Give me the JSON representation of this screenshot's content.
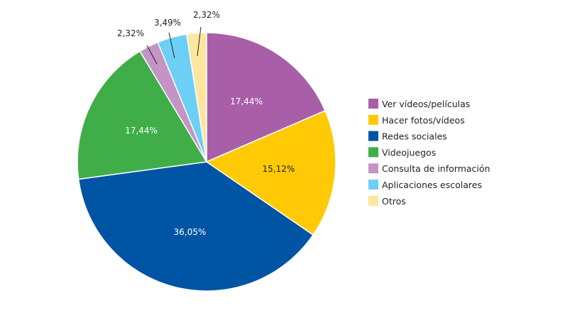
{
  "chart_data": {
    "type": "pie",
    "title": "",
    "slices": [
      {
        "label": "Ver vídeos/películas",
        "value": 17.44,
        "display": "17,44%",
        "color": "#A85FA8"
      },
      {
        "label": "Hacer fotos/vídeos",
        "value": 15.12,
        "display": "15,12%",
        "color": "#FFCA05"
      },
      {
        "label": "Redes sociales",
        "value": 36.05,
        "display": "36,05%",
        "color": "#0054A4"
      },
      {
        "label": "Videojuegos",
        "value": 17.44,
        "display": "17,44%",
        "color": "#3FAE49"
      },
      {
        "label": "Consulta de información",
        "value": 2.32,
        "display": "2,32%",
        "color": "#C494C4"
      },
      {
        "label": "Aplicaciones escolares",
        "value": 3.49,
        "display": "3,49%",
        "color": "#6CCFF6"
      },
      {
        "label": "Otros",
        "value": 2.32,
        "display": "2,32%",
        "color": "#FCE6A0"
      }
    ],
    "legend_position": "right"
  }
}
